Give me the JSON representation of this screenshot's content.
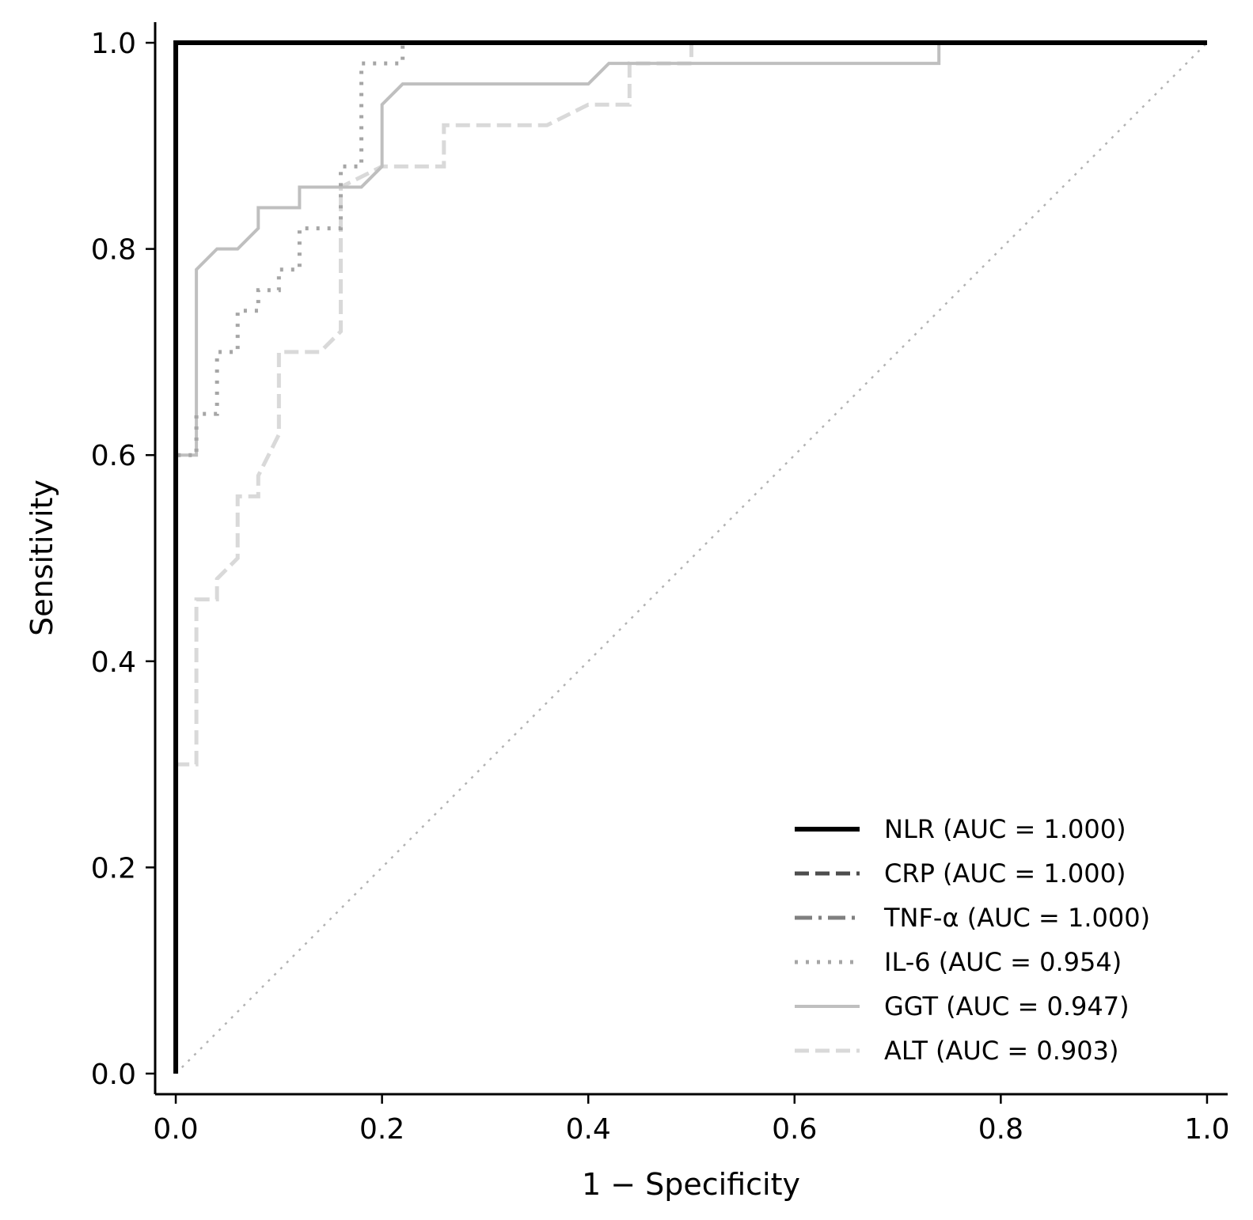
{
  "chart_data": {
    "type": "line",
    "title": "",
    "xlabel": "1 − Specificity",
    "ylabel": "Sensitivity",
    "xlim": [
      -0.02,
      1.02
    ],
    "ylim": [
      -0.02,
      1.02
    ],
    "x_ticks": [
      "0.0",
      "0.2",
      "0.4",
      "0.6",
      "0.8",
      "1.0"
    ],
    "y_ticks": [
      "0.0",
      "0.2",
      "0.4",
      "0.6",
      "0.8",
      "1.0"
    ],
    "grid": false,
    "legend_position": "bottom-right",
    "series": [
      {
        "name": "NLR (AUC = 1.000)",
        "color": "#000000",
        "style": "solid",
        "x": [
          0,
          0,
          1
        ],
        "y": [
          0,
          1,
          1
        ]
      },
      {
        "name": "CRP (AUC = 1.000)",
        "color": "#4d4d4d",
        "style": "dashed",
        "x": [
          0,
          0,
          1
        ],
        "y": [
          0,
          1,
          1
        ]
      },
      {
        "name": "TNF-α (AUC = 1.000)",
        "color": "#808080",
        "style": "dashdot",
        "x": [
          0,
          0,
          1
        ],
        "y": [
          0,
          1,
          1
        ]
      },
      {
        "name": "IL-6 (AUC = 0.954)",
        "color": "#a6a6a6",
        "style": "dotted",
        "x": [
          0,
          0,
          0.02,
          0.02,
          0.04,
          0.04,
          0.06,
          0.06,
          0.08,
          0.08,
          0.1,
          0.1,
          0.12,
          0.12,
          0.16,
          0.16,
          0.18,
          0.18,
          0.22,
          0.22,
          1.0
        ],
        "y": [
          0,
          0.6,
          0.6,
          0.64,
          0.64,
          0.7,
          0.7,
          0.74,
          0.74,
          0.76,
          0.76,
          0.78,
          0.78,
          0.82,
          0.82,
          0.88,
          0.88,
          0.98,
          0.98,
          1.0,
          1.0
        ]
      },
      {
        "name": "GGT (AUC = 0.947)",
        "color": "#bfbfbf",
        "style": "solid",
        "x": [
          0,
          0,
          0.02,
          0.02,
          0.04,
          0.06,
          0.08,
          0.08,
          0.12,
          0.12,
          0.18,
          0.2,
          0.2,
          0.22,
          0.4,
          0.42,
          0.74,
          0.74,
          1.0
        ],
        "y": [
          0,
          0.6,
          0.6,
          0.78,
          0.8,
          0.8,
          0.82,
          0.84,
          0.84,
          0.86,
          0.86,
          0.88,
          0.94,
          0.96,
          0.96,
          0.98,
          0.98,
          1.0,
          1.0
        ]
      },
      {
        "name": "ALT (AUC = 0.903)",
        "color": "#d9d9d9",
        "style": "dashed",
        "x": [
          0,
          0,
          0.02,
          0.02,
          0.04,
          0.04,
          0.06,
          0.06,
          0.08,
          0.08,
          0.1,
          0.1,
          0.14,
          0.16,
          0.16,
          0.2,
          0.26,
          0.26,
          0.36,
          0.4,
          0.44,
          0.44,
          0.5,
          0.5,
          1.0
        ],
        "y": [
          0,
          0.3,
          0.3,
          0.46,
          0.46,
          0.48,
          0.5,
          0.56,
          0.56,
          0.58,
          0.62,
          0.7,
          0.7,
          0.72,
          0.86,
          0.88,
          0.88,
          0.92,
          0.92,
          0.94,
          0.94,
          0.98,
          0.98,
          1.0,
          1.0
        ]
      }
    ],
    "reference_line": {
      "x": [
        0,
        1
      ],
      "y": [
        0,
        1
      ],
      "color": "#b3b3b3",
      "style": "dotted"
    }
  }
}
